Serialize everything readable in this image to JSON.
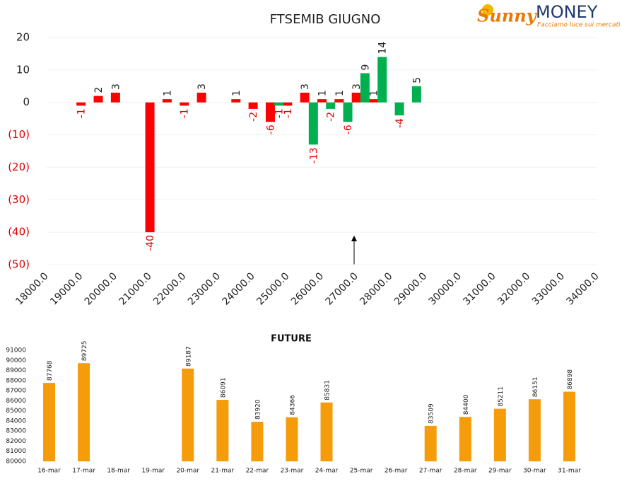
{
  "logo": {
    "brand": "Sunny",
    "name": "MONEY",
    "tagline": "Facciamo luce sui mercati"
  },
  "chart_data": [
    {
      "type": "bar",
      "title": "FTSEMIB GIUGNO",
      "xlim": [
        18000,
        34000
      ],
      "xticks": [
        {
          "value": 18000,
          "label": "18000.0"
        },
        {
          "value": 19000,
          "label": "19000.0"
        },
        {
          "value": 20000,
          "label": "20000.0"
        },
        {
          "value": 21000,
          "label": "21000.0"
        },
        {
          "value": 22000,
          "label": "22000.0"
        },
        {
          "value": 23000,
          "label": "23000.0"
        },
        {
          "value": 24000,
          "label": "24000.0"
        },
        {
          "value": 25000,
          "label": "25000.0"
        },
        {
          "value": 26000,
          "label": "26000.0"
        },
        {
          "value": 27000,
          "label": "27000.0"
        },
        {
          "value": 28000,
          "label": "28000.0"
        },
        {
          "value": 29000,
          "label": "29000.0"
        },
        {
          "value": 30000,
          "label": "30000.0"
        },
        {
          "value": 31000,
          "label": "31000.0"
        },
        {
          "value": 32000,
          "label": "32000.0"
        },
        {
          "value": 33000,
          "label": "33000.0"
        },
        {
          "value": 34000,
          "label": "34000.0"
        }
      ],
      "ylim": [
        -50,
        20
      ],
      "yticks": [
        20,
        10,
        0,
        {
          "value": -10,
          "label": "(10)"
        },
        {
          "value": -20,
          "label": "(20)"
        },
        {
          "value": -30,
          "label": "(30)"
        },
        {
          "value": -40,
          "label": "(40)"
        },
        {
          "value": -50,
          "label": "(50)"
        }
      ],
      "grid": true,
      "series": [
        {
          "color": "#ff0000",
          "x": [
            19000,
            19500,
            20000,
            21000,
            21500,
            22000,
            22500,
            23500,
            24000,
            24500,
            25000,
            25500,
            26000,
            26500,
            27000,
            27500
          ],
          "values": [
            -1,
            2,
            3,
            -40,
            1,
            -1,
            3,
            1,
            -2,
            -6,
            -1,
            3,
            1,
            1,
            3,
            1
          ]
        },
        {
          "color": "#00b050",
          "x": [
            24750,
            25750,
            26250,
            26750,
            27250,
            27750,
            28250,
            28750
          ],
          "values": [
            -1,
            -13,
            -2,
            -6,
            9,
            14,
            -4,
            5
          ]
        }
      ]
    },
    {
      "type": "bar",
      "title": "FUTURE",
      "categories": [
        "16-mar",
        "17-mar",
        "18-mar",
        "19-mar",
        "20-mar",
        "21-mar",
        "22-mar",
        "23-mar",
        "24-mar",
        "25-mar",
        "26-mar",
        "27-mar",
        "28-mar",
        "29-mar",
        "30-mar",
        "31-mar"
      ],
      "values": [
        87768,
        89725,
        null,
        null,
        89187,
        86091,
        83920,
        84366,
        85831,
        null,
        null,
        83509,
        84400,
        85211,
        86151,
        86898
      ],
      "color": "#f59c0a",
      "ylim": [
        80000,
        91000
      ],
      "yticks": [
        80000,
        81000,
        82000,
        83000,
        84000,
        85000,
        86000,
        87000,
        88000,
        89000,
        90000,
        91000
      ],
      "grid": false
    }
  ]
}
